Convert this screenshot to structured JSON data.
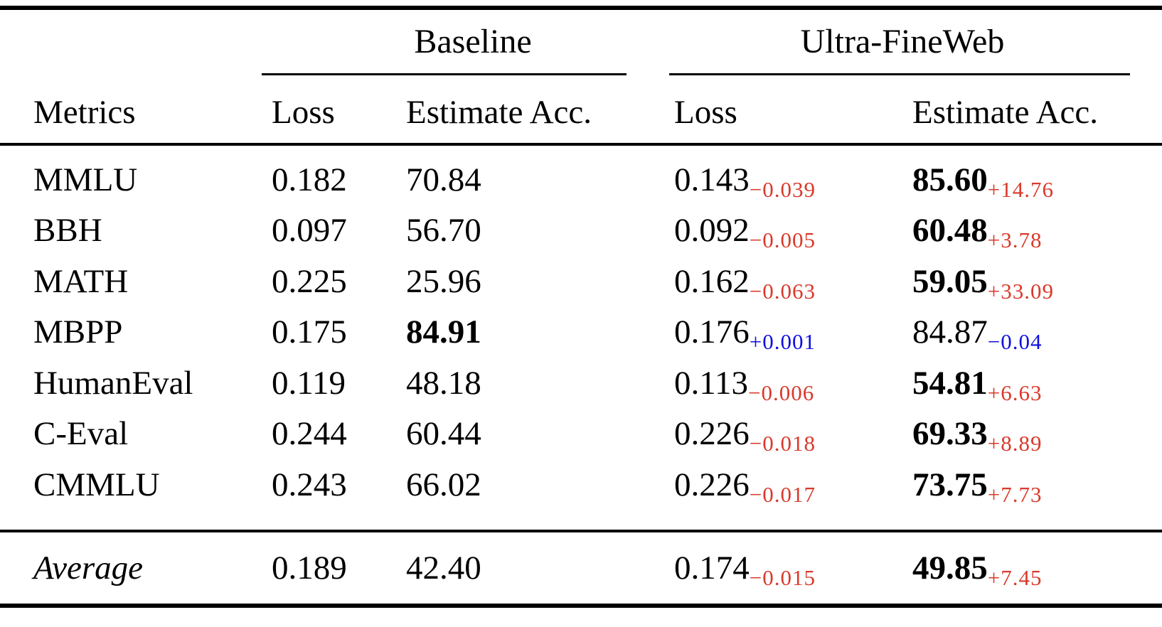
{
  "table": {
    "title_groups": [
      {
        "label": "Baseline"
      },
      {
        "label": "Ultra-FineWeb"
      }
    ],
    "column_headers": {
      "metrics": "Metrics",
      "baseline_loss": "Loss",
      "baseline_acc": "Estimate Acc.",
      "ufw_loss": "Loss",
      "ufw_acc": "Estimate Acc."
    },
    "rows": [
      {
        "metric": "MMLU",
        "baseline_loss": "0.182",
        "baseline_acc": "70.84",
        "ufw_loss": "0.143",
        "ufw_loss_delta": "−0.039",
        "ufw_acc": "85.60",
        "ufw_acc_delta": "+14.76"
      },
      {
        "metric": "BBH",
        "baseline_loss": "0.097",
        "baseline_acc": "56.70",
        "ufw_loss": "0.092",
        "ufw_loss_delta": "−0.005",
        "ufw_acc": "60.48",
        "ufw_acc_delta": "+3.78"
      },
      {
        "metric": "MATH",
        "baseline_loss": "0.225",
        "baseline_acc": "25.96",
        "ufw_loss": "0.162",
        "ufw_loss_delta": "−0.063",
        "ufw_acc": "59.05",
        "ufw_acc_delta": "+33.09"
      },
      {
        "metric": "MBPP",
        "baseline_loss": "0.175",
        "baseline_acc": "84.91",
        "ufw_loss": "0.176",
        "ufw_loss_delta": "+0.001",
        "ufw_acc": "84.87",
        "ufw_acc_delta": "−0.04"
      },
      {
        "metric": "HumanEval",
        "baseline_loss": "0.119",
        "baseline_acc": "48.18",
        "ufw_loss": "0.113",
        "ufw_loss_delta": "−0.006",
        "ufw_acc": "54.81",
        "ufw_acc_delta": "+6.63"
      },
      {
        "metric": "C-Eval",
        "baseline_loss": "0.244",
        "baseline_acc": "60.44",
        "ufw_loss": "0.226",
        "ufw_loss_delta": "−0.018",
        "ufw_acc": "69.33",
        "ufw_acc_delta": "+8.89"
      },
      {
        "metric": "CMMLU",
        "baseline_loss": "0.243",
        "baseline_acc": "66.02",
        "ufw_loss": "0.226",
        "ufw_loss_delta": "−0.017",
        "ufw_acc": "73.75",
        "ufw_acc_delta": "+7.73"
      }
    ],
    "average_row": {
      "metric": "Average",
      "baseline_loss": "0.189",
      "baseline_acc": "42.40",
      "ufw_loss": "0.174",
      "ufw_loss_delta": "−0.015",
      "ufw_acc": "49.85",
      "ufw_acc_delta": "+7.45"
    }
  },
  "colors": {
    "delta_red": "#d93a2b",
    "delta_blue": "#0f0fe0",
    "text": "#000000",
    "background": "#ffffff"
  }
}
